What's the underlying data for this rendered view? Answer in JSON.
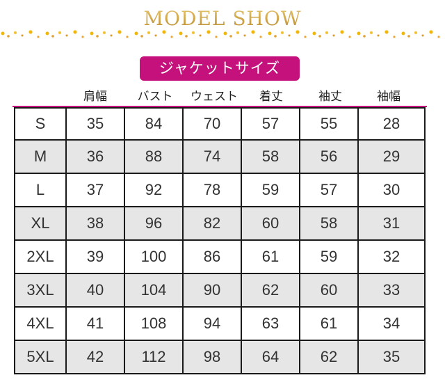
{
  "header": {
    "title": "MODEL SHOW",
    "accent_color": "#c9a046"
  },
  "badge": {
    "label": "ジャケットサイズ",
    "color": "#c5117b"
  },
  "columns": [
    "肩幅",
    "バスト",
    "ウェスト",
    "着丈",
    "袖丈",
    "袖幅"
  ],
  "rows": [
    [
      "S",
      "35",
      "84",
      "70",
      "57",
      "55",
      "28"
    ],
    [
      "M",
      "36",
      "88",
      "74",
      "58",
      "56",
      "29"
    ],
    [
      "L",
      "37",
      "92",
      "78",
      "59",
      "57",
      "30"
    ],
    [
      "XL",
      "38",
      "96",
      "82",
      "60",
      "58",
      "31"
    ],
    [
      "2XL",
      "39",
      "100",
      "86",
      "61",
      "59",
      "32"
    ],
    [
      "3XL",
      "40",
      "104",
      "90",
      "62",
      "60",
      "33"
    ],
    [
      "4XL",
      "41",
      "108",
      "94",
      "63",
      "61",
      "34"
    ],
    [
      "5XL",
      "42",
      "112",
      "98",
      "64",
      "62",
      "35"
    ]
  ]
}
